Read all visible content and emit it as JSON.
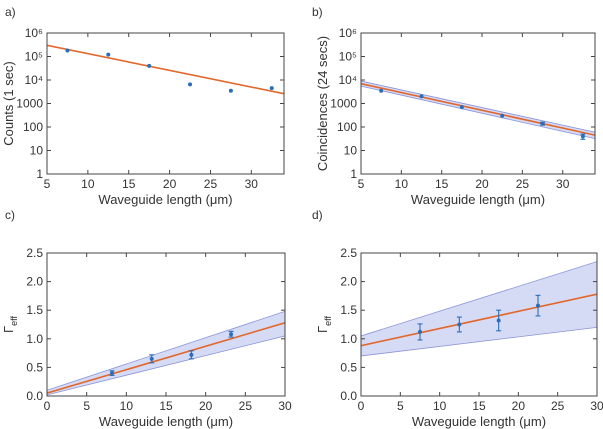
{
  "chart_data": [
    {
      "panel": "a)",
      "type": "scatter",
      "xlabel": "Waveguide length (μm)",
      "ylabel": "Counts (1 sec)",
      "xlim": [
        5,
        34
      ],
      "ylim": [
        1,
        1000000
      ],
      "yscale": "log",
      "xticks": [
        5,
        10,
        15,
        20,
        25,
        30
      ],
      "yticks": [
        1,
        10,
        100,
        1000,
        10000,
        100000,
        1000000
      ],
      "ytick_labels": [
        "1",
        "10",
        "100",
        "1000",
        "10⁴",
        "10⁵",
        "10⁶"
      ],
      "series": [
        {
          "x": [
            7.5,
            12.5,
            17.5,
            22.5,
            27.5,
            32.5
          ],
          "y": [
            180000,
            120000,
            40000,
            6500,
            3500,
            4500
          ],
          "yerr": [
            0,
            0,
            0,
            0,
            0,
            0
          ],
          "color": "#2a6ebb"
        }
      ],
      "fit": {
        "x": [
          5,
          34
        ],
        "y": [
          300000,
          2600
        ],
        "color": "#e3672a"
      },
      "band": null
    },
    {
      "panel": "b)",
      "type": "scatter",
      "xlabel": "Waveguide length (μm)",
      "ylabel": "Coincidences (24 secs)",
      "xlim": [
        5,
        34
      ],
      "ylim": [
        1,
        1000000
      ],
      "yscale": "log",
      "xticks": [
        5,
        10,
        15,
        20,
        25,
        30
      ],
      "yticks": [
        1,
        10,
        100,
        1000,
        10000,
        100000,
        1000000
      ],
      "ytick_labels": [
        "1",
        "10",
        "100",
        "1000",
        "10⁴",
        "10⁵",
        "10⁶"
      ],
      "series": [
        {
          "x": [
            7.5,
            12.5,
            17.5,
            22.5,
            27.5,
            32.5
          ],
          "y": [
            3500,
            2000,
            700,
            300,
            140,
            40
          ],
          "yerr": [
            0,
            0,
            0,
            0,
            20,
            10
          ],
          "color": "#2a6ebb"
        }
      ],
      "fit": {
        "x": [
          5,
          34
        ],
        "y": [
          7000,
          45
        ],
        "color": "#e3672a"
      },
      "band": {
        "x": [
          5,
          34
        ],
        "lower": [
          5500,
          32
        ],
        "upper": [
          9000,
          60
        ],
        "color": "#c7cdf2"
      }
    },
    {
      "panel": "c)",
      "type": "scatter",
      "xlabel": "Waveguide length (μm)",
      "ylabel": "Γ",
      "ylabel_sub": "eff",
      "xlim": [
        0,
        30
      ],
      "ylim": [
        0,
        2.5
      ],
      "yscale": "linear",
      "xticks": [
        0,
        5,
        10,
        15,
        20,
        25,
        30
      ],
      "yticks": [
        0,
        0.5,
        1.0,
        1.5,
        2.0,
        2.5
      ],
      "ytick_labels": [
        "0.0",
        "0.5",
        "1.0",
        "1.5",
        "2.0",
        "2.5"
      ],
      "series": [
        {
          "x": [
            8.2,
            13.2,
            18.2,
            23.2
          ],
          "y": [
            0.4,
            0.65,
            0.72,
            1.08
          ],
          "yerr": [
            0.04,
            0.07,
            0.07,
            0.05
          ],
          "color": "#2a6ebb"
        }
      ],
      "fit": {
        "x": [
          0,
          30
        ],
        "y": [
          0.05,
          1.28
        ],
        "color": "#e3672a"
      },
      "band": {
        "x": [
          0,
          30
        ],
        "lower": [
          0.02,
          1.05
        ],
        "upper": [
          0.1,
          1.48
        ],
        "color": "#c7cdf2"
      }
    },
    {
      "panel": "d)",
      "type": "scatter",
      "xlabel": "Waveguide length (μm)",
      "ylabel": "Γ",
      "ylabel_sub": "eff",
      "xlim": [
        0,
        30
      ],
      "ylim": [
        0,
        2.5
      ],
      "yscale": "linear",
      "xticks": [
        0,
        5,
        10,
        15,
        20,
        25,
        30
      ],
      "yticks": [
        0,
        0.5,
        1.0,
        1.5,
        2.0,
        2.5
      ],
      "ytick_labels": [
        "0.0",
        "0.5",
        "1.0",
        "1.5",
        "2.0",
        "2.5"
      ],
      "series": [
        {
          "x": [
            7.5,
            12.5,
            17.5,
            22.5
          ],
          "y": [
            1.12,
            1.25,
            1.32,
            1.58
          ],
          "yerr": [
            0.14,
            0.13,
            0.18,
            0.18
          ],
          "color": "#2a6ebb"
        }
      ],
      "fit": {
        "x": [
          0,
          30
        ],
        "y": [
          0.88,
          1.78
        ],
        "color": "#e3672a"
      },
      "band": {
        "x": [
          0,
          30
        ],
        "lower": [
          0.7,
          1.2
        ],
        "upper": [
          1.05,
          2.35
        ],
        "color": "#c7cdf2"
      }
    }
  ],
  "colors": {
    "frame": "#444444",
    "band_edge": "#8a94d6"
  }
}
